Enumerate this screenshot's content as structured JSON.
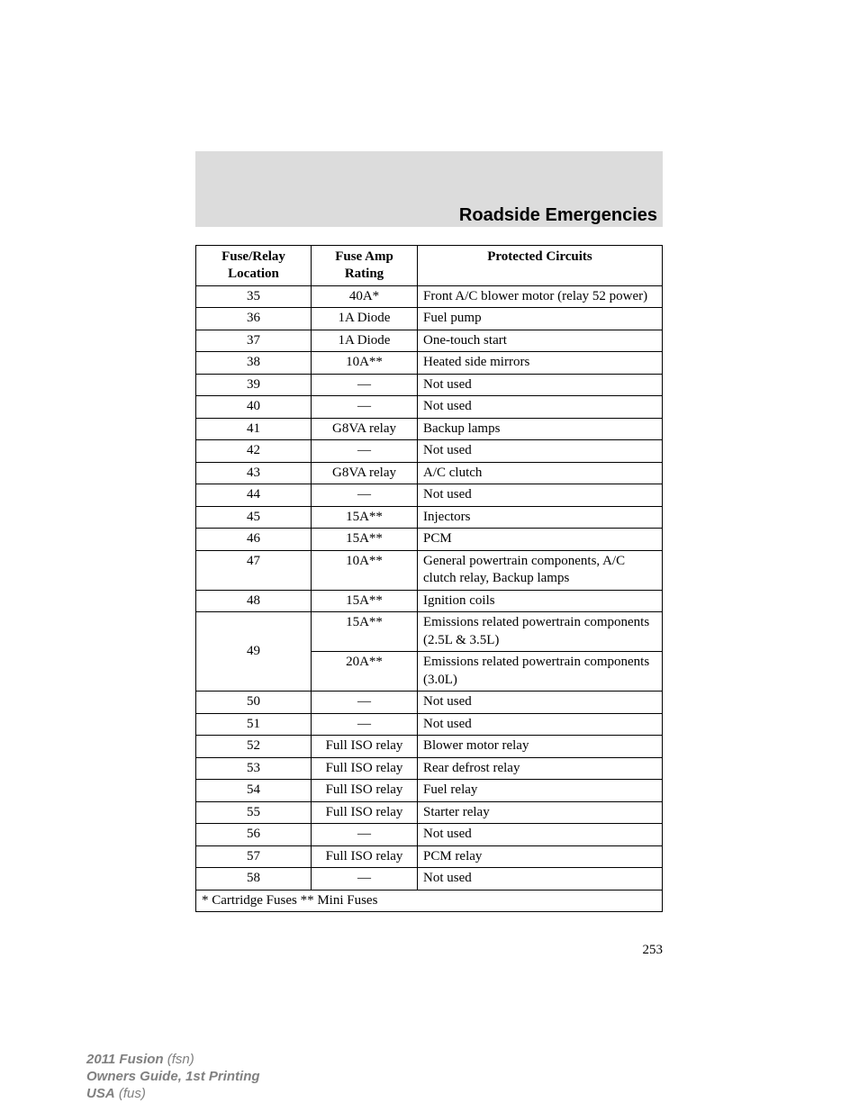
{
  "section_title": "Roadside Emergencies",
  "table": {
    "headers": {
      "col1_line1": "Fuse/Relay",
      "col1_line2": "Location",
      "col2_line1": "Fuse Amp",
      "col2_line2": "Rating",
      "col3": "Protected Circuits"
    },
    "rows": [
      {
        "loc": "35",
        "amp": "40A*",
        "desc": "Front A/C blower motor (relay 52 power)"
      },
      {
        "loc": "36",
        "amp": "1A Diode",
        "desc": "Fuel pump"
      },
      {
        "loc": "37",
        "amp": "1A Diode",
        "desc": "One-touch start"
      },
      {
        "loc": "38",
        "amp": "10A**",
        "desc": "Heated side mirrors"
      },
      {
        "loc": "39",
        "amp": "—",
        "desc": "Not used"
      },
      {
        "loc": "40",
        "amp": "—",
        "desc": "Not used"
      },
      {
        "loc": "41",
        "amp": "G8VA relay",
        "desc": "Backup lamps"
      },
      {
        "loc": "42",
        "amp": "—",
        "desc": "Not used"
      },
      {
        "loc": "43",
        "amp": "G8VA relay",
        "desc": "A/C clutch"
      },
      {
        "loc": "44",
        "amp": "—",
        "desc": "Not used"
      },
      {
        "loc": "45",
        "amp": "15A**",
        "desc": "Injectors"
      },
      {
        "loc": "46",
        "amp": "15A**",
        "desc": "PCM"
      },
      {
        "loc": "47",
        "amp": "10A**",
        "desc": "General powertrain components, A/C clutch relay, Backup lamps"
      },
      {
        "loc": "48",
        "amp": "15A**",
        "desc": "Ignition coils"
      }
    ],
    "row49": {
      "loc": "49",
      "sub": [
        {
          "amp": "15A**",
          "desc": "Emissions related powertrain components (2.5L & 3.5L)"
        },
        {
          "amp": "20A**",
          "desc": "Emissions related powertrain components (3.0L)"
        }
      ]
    },
    "rows_after": [
      {
        "loc": "50",
        "amp": "—",
        "desc": "Not used"
      },
      {
        "loc": "51",
        "amp": "—",
        "desc": "Not used"
      },
      {
        "loc": "52",
        "amp": "Full ISO relay",
        "desc": "Blower motor relay"
      },
      {
        "loc": "53",
        "amp": "Full ISO relay",
        "desc": "Rear defrost relay"
      },
      {
        "loc": "54",
        "amp": "Full ISO relay",
        "desc": "Fuel relay"
      },
      {
        "loc": "55",
        "amp": "Full ISO relay",
        "desc": "Starter relay"
      },
      {
        "loc": "56",
        "amp": "—",
        "desc": "Not used"
      },
      {
        "loc": "57",
        "amp": "Full ISO relay",
        "desc": "PCM relay"
      },
      {
        "loc": "58",
        "amp": "—",
        "desc": "Not used"
      }
    ],
    "footnote": "* Cartridge Fuses ** Mini Fuses"
  },
  "page_number": "253",
  "footer": {
    "line1_bold": "2011 Fusion",
    "line1_italic": "(fsn)",
    "line2": "Owners Guide, 1st Printing",
    "line3_bold": "USA",
    "line3_italic": "(fus)"
  },
  "colors": {
    "gray_bar": "#dcdcdc",
    "text": "#000000",
    "footer_text": "#808080",
    "background": "#ffffff"
  },
  "fonts": {
    "body_family": "Times New Roman",
    "heading_family": "Arial",
    "body_size_pt": 11,
    "heading_size_pt": 15,
    "footer_size_pt": 11
  }
}
